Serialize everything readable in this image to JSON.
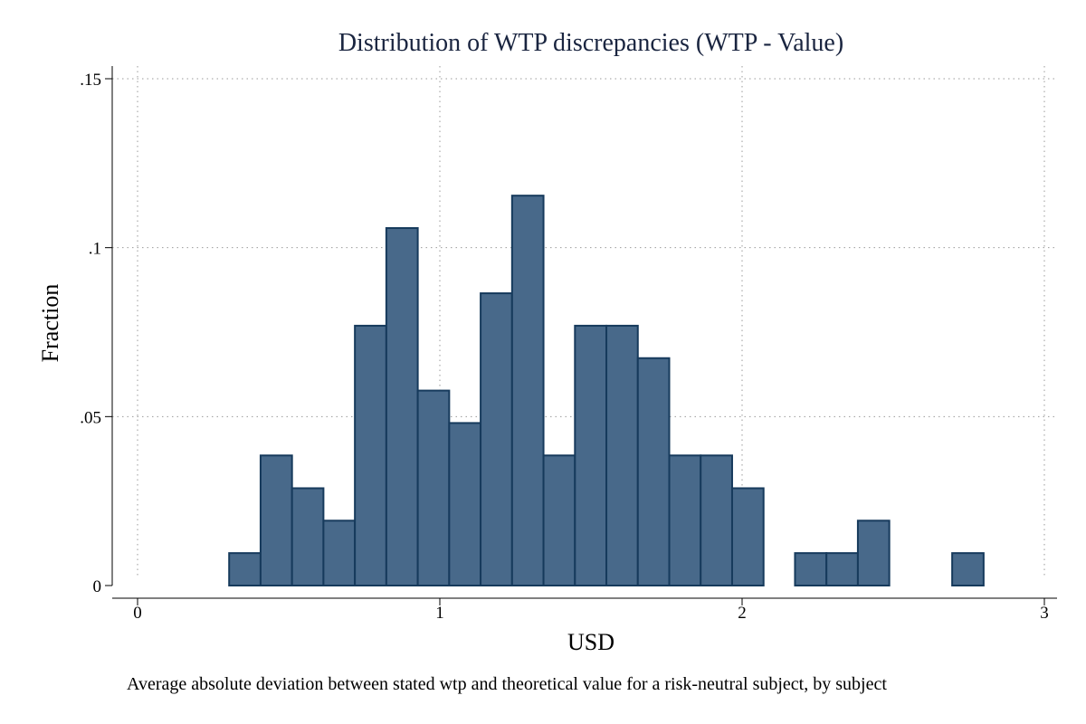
{
  "chart_data": {
    "type": "bar",
    "subtype": "histogram",
    "title": "Distribution of WTP discrepancies (WTP - Value)",
    "xlabel": "USD",
    "ylabel": "Fraction",
    "note": "Average absolute deviation between stated wtp and theoretical value for a risk-neutral subject, by subject",
    "xlim": [
      0,
      3
    ],
    "ylim": [
      0,
      0.15
    ],
    "xticks": [
      {
        "value": 0,
        "label": "0"
      },
      {
        "value": 1,
        "label": "1"
      },
      {
        "value": 2,
        "label": "2"
      },
      {
        "value": 3,
        "label": "3"
      }
    ],
    "yticks": [
      {
        "value": 0,
        "label": "0"
      },
      {
        "value": 0.05,
        "label": ".05"
      },
      {
        "value": 0.1,
        "label": ".1"
      },
      {
        "value": 0.15,
        "label": ".15"
      }
    ],
    "grid": true,
    "bin_width": 0.104,
    "bins": [
      {
        "start": 0.303,
        "value": 0.0096
      },
      {
        "start": 0.407,
        "value": 0.0385
      },
      {
        "start": 0.511,
        "value": 0.0288
      },
      {
        "start": 0.615,
        "value": 0.0192
      },
      {
        "start": 0.719,
        "value": 0.0769
      },
      {
        "start": 0.823,
        "value": 0.1058
      },
      {
        "start": 0.927,
        "value": 0.0577
      },
      {
        "start": 1.031,
        "value": 0.0481
      },
      {
        "start": 1.135,
        "value": 0.0865
      },
      {
        "start": 1.239,
        "value": 0.1154
      },
      {
        "start": 1.343,
        "value": 0.0385
      },
      {
        "start": 1.447,
        "value": 0.0769
      },
      {
        "start": 1.551,
        "value": 0.0769
      },
      {
        "start": 1.655,
        "value": 0.0673
      },
      {
        "start": 1.759,
        "value": 0.0385
      },
      {
        "start": 1.863,
        "value": 0.0385
      },
      {
        "start": 1.967,
        "value": 0.0288
      },
      {
        "start": 2.071,
        "value": 0.0
      },
      {
        "start": 2.175,
        "value": 0.0096
      },
      {
        "start": 2.279,
        "value": 0.0096
      },
      {
        "start": 2.383,
        "value": 0.0192
      },
      {
        "start": 2.487,
        "value": 0.0
      },
      {
        "start": 2.591,
        "value": 0.0
      },
      {
        "start": 2.695,
        "value": 0.0096
      }
    ],
    "colors": {
      "bar_fill": "#48698a",
      "bar_edge": "#163a5c",
      "title": "#1a2540"
    }
  }
}
